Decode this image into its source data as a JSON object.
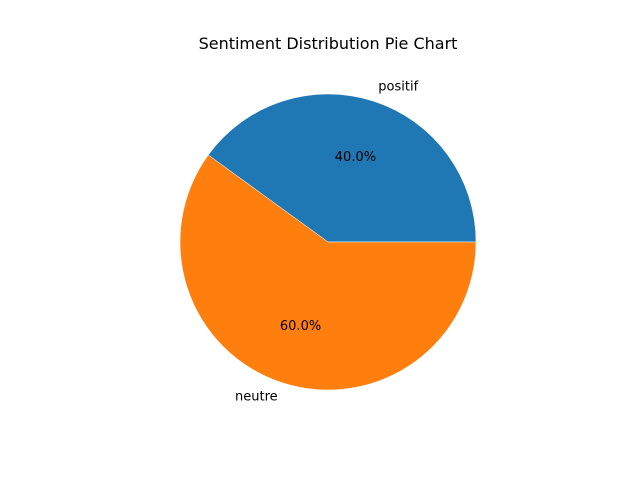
{
  "chart_data": {
    "type": "pie",
    "title": "Sentiment Distribution Pie Chart",
    "slices": [
      {
        "label": "positif",
        "value": 40.0,
        "percent_label": "40.0%",
        "color": "#1f77b4"
      },
      {
        "label": "neutre",
        "value": 60.0,
        "percent_label": "60.0%",
        "color": "#ff7f0e"
      }
    ],
    "start_angle_deg": 0,
    "direction": "counterclockwise",
    "legend": "none"
  }
}
